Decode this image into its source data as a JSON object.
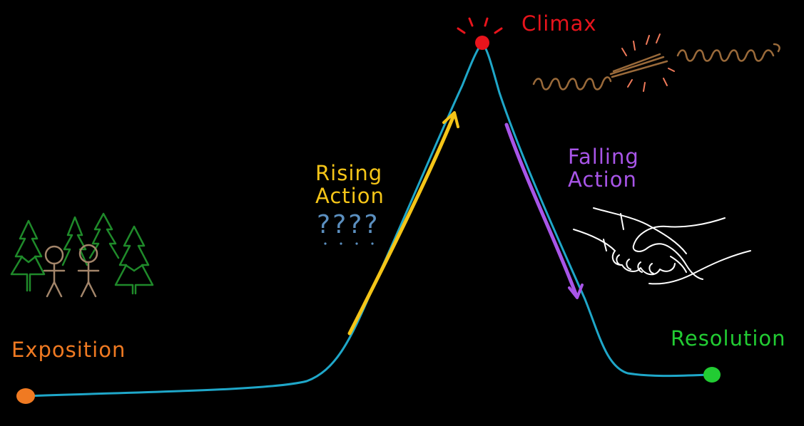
{
  "labels": {
    "exposition": "Exposition",
    "rising_line1": "Rising",
    "rising_line2": "Action",
    "questions": "????",
    "climax": "Climax",
    "falling_line1": "Falling",
    "falling_line2": "Action",
    "resolution": "Resolution"
  },
  "colors": {
    "background": "#000000",
    "plot_line": "#1fa7c9",
    "exposition": "#f07a22",
    "rising": "#f5c518",
    "questions": "#5b8fbf",
    "climax": "#e8141c",
    "falling": "#a855e8",
    "resolution": "#22cc33",
    "trees": "#1f8a2a",
    "people": "#a3856a",
    "rope": "#9a6a3a",
    "spark": "#f07a5a",
    "handshake": "#ffffff"
  },
  "icons": {
    "exposition_scene": "trees-and-people-icon",
    "climax_scene": "breaking-rope-icon",
    "falling_scene": "handshake-icon"
  }
}
